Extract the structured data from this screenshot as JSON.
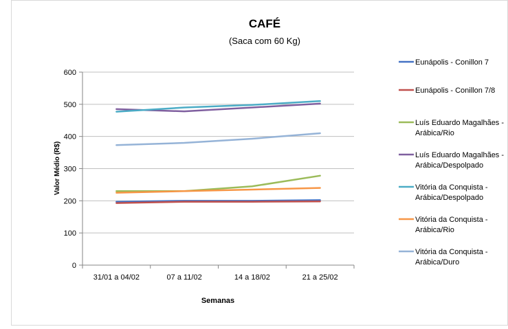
{
  "chart_data": {
    "type": "line",
    "title": "CAFÉ",
    "subtitle": "(Saca com 60 Kg)",
    "xlabel": "Semanas",
    "ylabel": "Valor Médio (R$)",
    "categories": [
      "31/01 a 04/02",
      "07 a 11/02",
      "14 a 18/02",
      "21 a 25/02"
    ],
    "ylim": [
      0,
      600
    ],
    "yticks": [
      0,
      100,
      200,
      300,
      400,
      500,
      600
    ],
    "grid": true,
    "legend_position": "right",
    "series": [
      {
        "name": "Eunápolis - Conillon 7",
        "color": "#4472c4",
        "values": [
          197,
          200,
          200,
          202
        ]
      },
      {
        "name": "Eunápolis - Conillon 7/8",
        "color": "#c0504d",
        "values": [
          193,
          197,
          197,
          198
        ]
      },
      {
        "name": "Luís Eduardo Magalhães - Arábica/Rio",
        "color": "#9bbb59",
        "values": [
          230,
          230,
          245,
          278
        ]
      },
      {
        "name": "Luís Eduardo Magalhães - Arábica/Despolpado",
        "color": "#7f5f9f",
        "values": [
          485,
          478,
          490,
          502
        ]
      },
      {
        "name": "Vitória da Conquista - Arábica/Despolpado",
        "color": "#4bacc6",
        "values": [
          477,
          490,
          498,
          510
        ]
      },
      {
        "name": "Vitória da Conquista - Arábica/Rio",
        "color": "#f79646",
        "values": [
          225,
          230,
          235,
          240
        ]
      },
      {
        "name": "Vitória da Conquista - Arábica/Duro",
        "color": "#95b3d7",
        "values": [
          373,
          380,
          393,
          410
        ]
      }
    ]
  }
}
